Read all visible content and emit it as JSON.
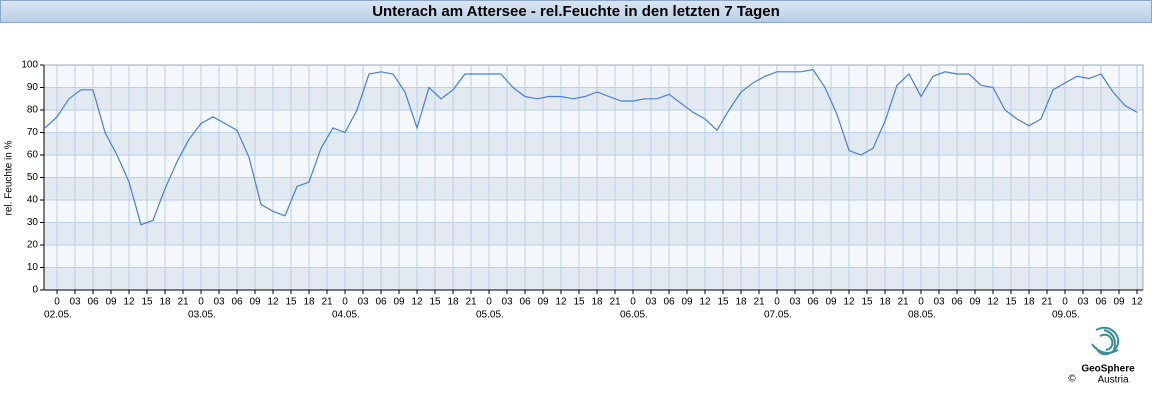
{
  "chart_data": {
    "type": "line",
    "title": "Unterach am Attersee - rel.Feuchte in den letzten 7 Tagen",
    "y_label": "rel. Feuchte in %",
    "logo": {
      "name": "GeoSphere",
      "sub": "Austria",
      "copyright": "©"
    },
    "x": [
      -2,
      0,
      2,
      4,
      6,
      8,
      10,
      12,
      14,
      16,
      18,
      20,
      22,
      24,
      26,
      28,
      30,
      32,
      34,
      36,
      38,
      40,
      42,
      44,
      46,
      48,
      50,
      52,
      54,
      56,
      58,
      60,
      62,
      64,
      66,
      68,
      70,
      72,
      74,
      76,
      78,
      80,
      82,
      84,
      86,
      88,
      90,
      92,
      94,
      96,
      98,
      100,
      102,
      104,
      106,
      108,
      110,
      112,
      114,
      116,
      118,
      120,
      122,
      124,
      126,
      128,
      130,
      132,
      134,
      136,
      138,
      140,
      142,
      144,
      146,
      148,
      150,
      152,
      154,
      156,
      158,
      160,
      162,
      164,
      166,
      168,
      170,
      172,
      174,
      176,
      178,
      180
    ],
    "series": [
      {
        "name": "rel. Feuchte",
        "color": "#4a7fd8",
        "values": [
          72,
          77,
          85,
          89,
          89,
          70,
          60,
          48,
          29,
          31,
          45,
          57,
          67,
          74,
          77,
          74,
          71,
          59,
          38,
          35,
          33,
          46,
          48,
          63,
          72,
          70,
          80,
          96,
          97,
          96,
          88,
          72,
          90,
          85,
          89,
          96,
          96,
          96,
          96,
          90,
          86,
          85,
          86,
          86,
          85,
          86,
          88,
          86,
          84,
          84,
          85,
          85,
          87,
          83,
          79,
          76,
          71,
          80,
          88,
          92,
          95,
          97,
          97,
          97,
          98,
          90,
          78,
          62,
          60,
          63,
          75,
          91,
          96,
          86,
          95,
          97,
          96,
          96,
          91,
          90,
          80,
          76,
          73,
          76,
          89,
          92,
          95,
          94,
          96,
          88,
          82,
          79
        ]
      }
    ],
    "xlim": [
      -2.17,
      181
    ],
    "xticks": [
      {
        "value": 0,
        "label": "0"
      },
      {
        "value": 3,
        "label": "03"
      },
      {
        "value": 6,
        "label": "06"
      },
      {
        "value": 9,
        "label": "09"
      },
      {
        "value": 12,
        "label": "12"
      },
      {
        "value": 15,
        "label": "15"
      },
      {
        "value": 18,
        "label": "18"
      },
      {
        "value": 21,
        "label": "21"
      },
      {
        "value": 24,
        "label": "0"
      },
      {
        "value": 27,
        "label": "03"
      },
      {
        "value": 30,
        "label": "06"
      },
      {
        "value": 33,
        "label": "09"
      },
      {
        "value": 36,
        "label": "12"
      },
      {
        "value": 39,
        "label": "15"
      },
      {
        "value": 42,
        "label": "18"
      },
      {
        "value": 45,
        "label": "21"
      },
      {
        "value": 48,
        "label": "0"
      },
      {
        "value": 51,
        "label": "03"
      },
      {
        "value": 54,
        "label": "06"
      },
      {
        "value": 57,
        "label": "09"
      },
      {
        "value": 60,
        "label": "12"
      },
      {
        "value": 63,
        "label": "15"
      },
      {
        "value": 66,
        "label": "18"
      },
      {
        "value": 69,
        "label": "21"
      },
      {
        "value": 72,
        "label": "0"
      },
      {
        "value": 75,
        "label": "03"
      },
      {
        "value": 78,
        "label": "06"
      },
      {
        "value": 81,
        "label": "09"
      },
      {
        "value": 84,
        "label": "12"
      },
      {
        "value": 87,
        "label": "15"
      },
      {
        "value": 90,
        "label": "18"
      },
      {
        "value": 93,
        "label": "21"
      },
      {
        "value": 96,
        "label": "0"
      },
      {
        "value": 99,
        "label": "03"
      },
      {
        "value": 102,
        "label": "06"
      },
      {
        "value": 105,
        "label": "09"
      },
      {
        "value": 108,
        "label": "12"
      },
      {
        "value": 111,
        "label": "15"
      },
      {
        "value": 114,
        "label": "18"
      },
      {
        "value": 117,
        "label": "21"
      },
      {
        "value": 120,
        "label": "0"
      },
      {
        "value": 123,
        "label": "03"
      },
      {
        "value": 126,
        "label": "06"
      },
      {
        "value": 129,
        "label": "09"
      },
      {
        "value": 132,
        "label": "12"
      },
      {
        "value": 135,
        "label": "15"
      },
      {
        "value": 138,
        "label": "18"
      },
      {
        "value": 141,
        "label": "21"
      },
      {
        "value": 144,
        "label": "0"
      },
      {
        "value": 147,
        "label": "03"
      },
      {
        "value": 150,
        "label": "06"
      },
      {
        "value": 153,
        "label": "09"
      },
      {
        "value": 156,
        "label": "12"
      },
      {
        "value": 159,
        "label": "15"
      },
      {
        "value": 162,
        "label": "18"
      },
      {
        "value": 165,
        "label": "21"
      },
      {
        "value": 168,
        "label": "0"
      },
      {
        "value": 171,
        "label": "03"
      },
      {
        "value": 174,
        "label": "06"
      },
      {
        "value": 177,
        "label": "09"
      },
      {
        "value": 180,
        "label": "12"
      }
    ],
    "date_labels": [
      {
        "value": 0,
        "label": "02.05."
      },
      {
        "value": 24,
        "label": "03.05."
      },
      {
        "value": 48,
        "label": "04.05."
      },
      {
        "value": 72,
        "label": "05.05."
      },
      {
        "value": 96,
        "label": "06.05."
      },
      {
        "value": 120,
        "label": "07.05."
      },
      {
        "value": 144,
        "label": "08.05."
      },
      {
        "value": 168,
        "label": "09.05."
      }
    ],
    "ylim": [
      0,
      100
    ],
    "yticks": [
      0,
      10,
      20,
      30,
      40,
      50,
      60,
      70,
      80,
      90,
      100
    ],
    "grid": true
  }
}
